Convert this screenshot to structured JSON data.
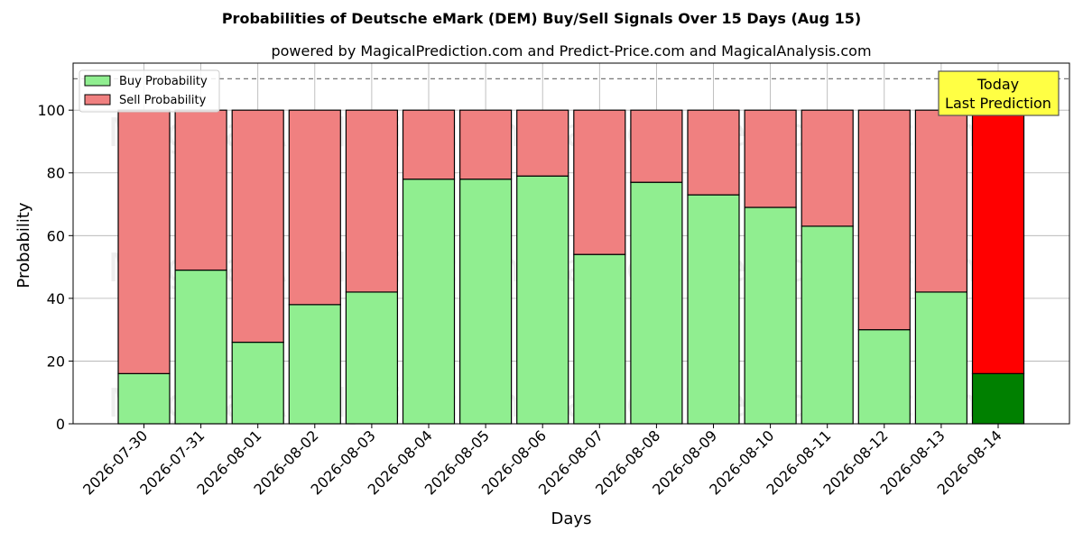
{
  "chart_data": {
    "type": "bar",
    "stacked": true,
    "title": "Probabilities of Deutsche eMark (DEM) Buy/Sell Signals Over 15 Days (Aug 15)",
    "subtitle": "powered by MagicalPrediction.com and Predict-Price.com and MagicalAnalysis.com",
    "xlabel": "Days",
    "ylabel": "Probability",
    "ylim": [
      0,
      115
    ],
    "yticks": [
      0,
      20,
      40,
      60,
      80,
      100
    ],
    "grid": true,
    "legend_position": "top-left",
    "reference_line": 110,
    "categories": [
      "2026-07-30",
      "2026-07-31",
      "2026-08-01",
      "2026-08-02",
      "2026-08-03",
      "2026-08-04",
      "2026-08-05",
      "2026-08-06",
      "2026-08-07",
      "2026-08-08",
      "2026-08-09",
      "2026-08-10",
      "2026-08-11",
      "2026-08-12",
      "2026-08-13",
      "2026-08-14"
    ],
    "series": [
      {
        "name": "Buy Probability",
        "color": "#90ee90",
        "highlight_color": "#008000",
        "values": [
          16,
          49,
          26,
          38,
          42,
          78,
          78,
          79,
          54,
          77,
          73,
          69,
          63,
          30,
          42,
          16
        ]
      },
      {
        "name": "Sell Probability",
        "color": "#f08080",
        "highlight_color": "#ff0000",
        "values": [
          84,
          51,
          74,
          62,
          58,
          22,
          22,
          21,
          46,
          23,
          27,
          31,
          37,
          70,
          58,
          84
        ]
      }
    ],
    "highlight_index": 15,
    "annotation": {
      "text_lines": [
        "Today",
        "Last Prediction"
      ],
      "color": "#ffff44"
    },
    "watermarks": [
      "MagicalAnalysis.com",
      "MagicalPrediction.com"
    ]
  }
}
